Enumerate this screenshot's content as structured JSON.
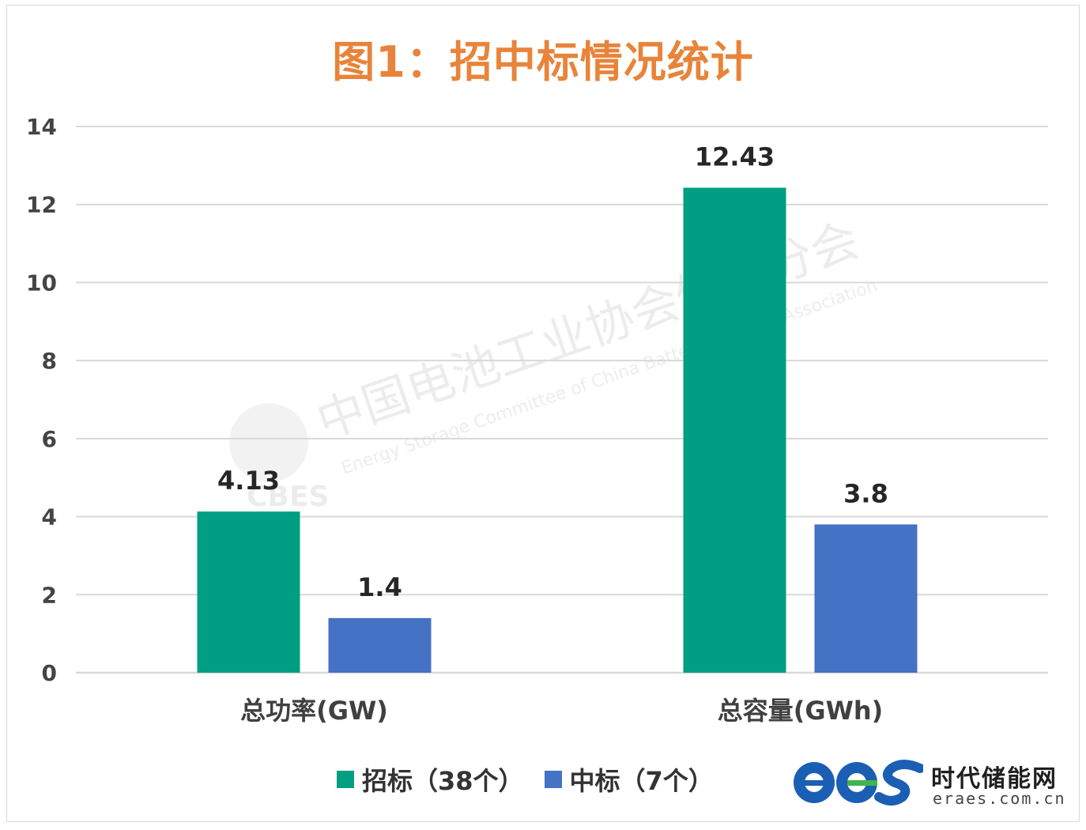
{
  "title": "图1：招中标情况统计",
  "colors": {
    "bidding": "#009e82",
    "winning": "#4472c4",
    "title": "#e8843a",
    "grid": "#d9d9d9"
  },
  "watermark": {
    "cn": "中国电池工业协会储能分会",
    "en": "Energy Storage Committee of China Battery Industry Association",
    "logo_text": "CBES"
  },
  "brand": {
    "name": "时代储能网",
    "url": "eraes.com.cn",
    "logo_text": "ees"
  },
  "chart_data": {
    "type": "bar",
    "title": "图1：招中标情况统计",
    "categories": [
      "总功率(GW)",
      "总容量(GWh)"
    ],
    "series": [
      {
        "name": "招标（38个）",
        "values": [
          4.13,
          12.43
        ],
        "labels": [
          "4.13",
          "12.43"
        ],
        "color": "#009e82"
      },
      {
        "name": "中标（7个）",
        "values": [
          1.4,
          3.8
        ],
        "labels": [
          "1.4",
          "3.8"
        ],
        "color": "#4472c4"
      }
    ],
    "yticks": [
      0,
      2,
      4,
      6,
      8,
      10,
      12,
      14
    ],
    "ylim": [
      0,
      14
    ],
    "grid": true,
    "legend_position": "bottom"
  }
}
